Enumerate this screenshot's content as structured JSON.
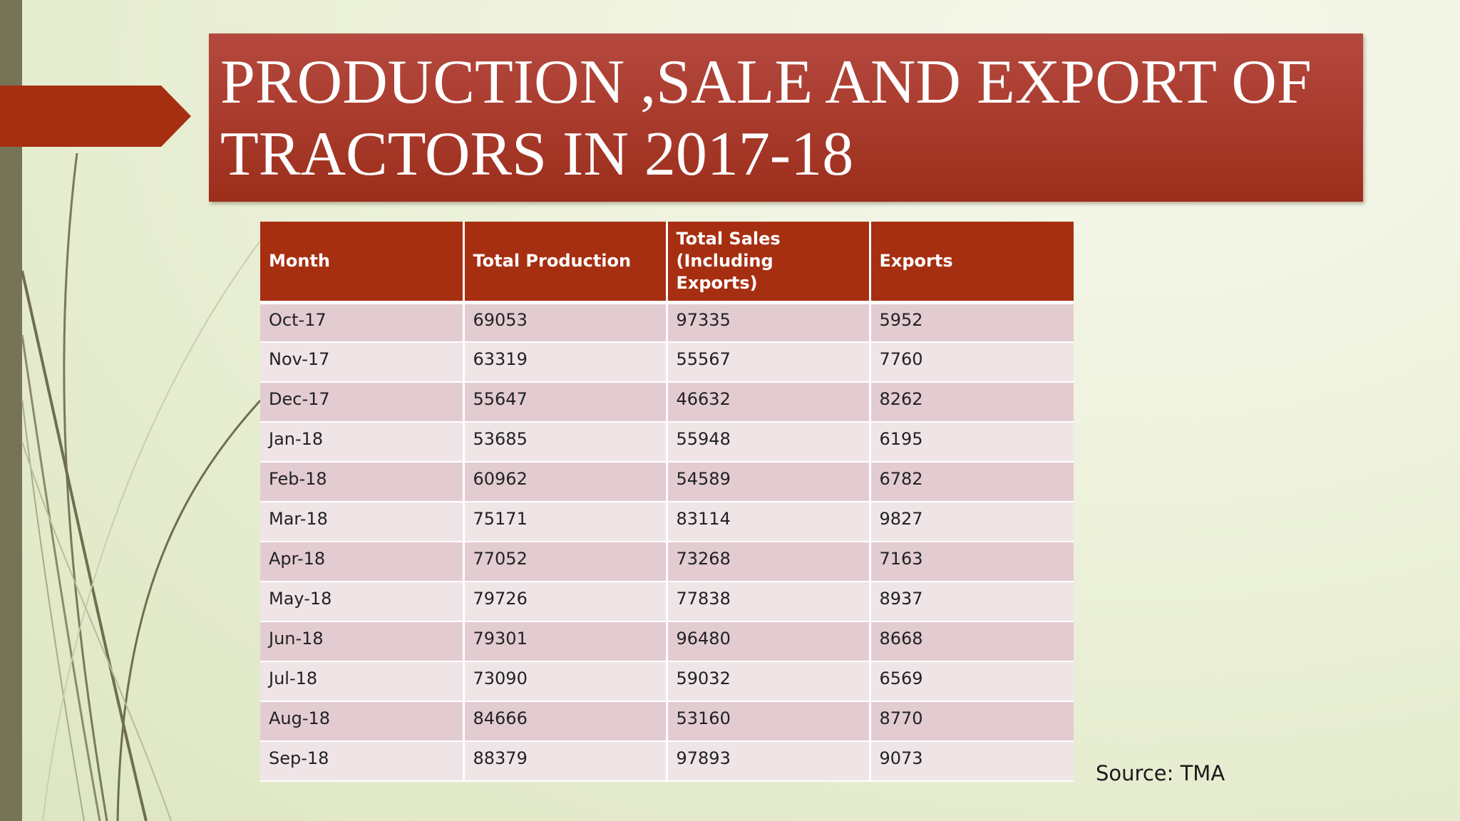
{
  "slide": {
    "title": "PRODUCTION ,SALE AND EXPORT OF\nTRACTORS IN 2017-18",
    "source": "Source: TMA"
  },
  "colors": {
    "title_fill": "#a83a2c",
    "header_fill": "#a62f12",
    "row_odd": "#e3ccd1",
    "row_even": "#efe5e7",
    "accent_arrow": "#a62f12",
    "left_bar": "#757457"
  },
  "table": {
    "headers": [
      "Month",
      "Total Production",
      "Total Sales (Including Exports)",
      "Exports"
    ],
    "rows": [
      [
        "Oct-17",
        "69053",
        "97335",
        "5952"
      ],
      [
        "Nov-17",
        "63319",
        "55567",
        "7760"
      ],
      [
        "Dec-17",
        "55647",
        "46632",
        "8262"
      ],
      [
        "Jan-18",
        "53685",
        "55948",
        "6195"
      ],
      [
        "Feb-18",
        "60962",
        "54589",
        "6782"
      ],
      [
        "Mar-18",
        "75171",
        "83114",
        "9827"
      ],
      [
        "Apr-18",
        "77052",
        "73268",
        "7163"
      ],
      [
        "May-18",
        "79726",
        "77838",
        "8937"
      ],
      [
        "Jun-18",
        "79301",
        "96480",
        "8668"
      ],
      [
        "Jul-18",
        "73090",
        "59032",
        "6569"
      ],
      [
        "Aug-18",
        "84666",
        "53160",
        "8770"
      ],
      [
        "Sep-18",
        "88379",
        "97893",
        "9073"
      ]
    ]
  }
}
